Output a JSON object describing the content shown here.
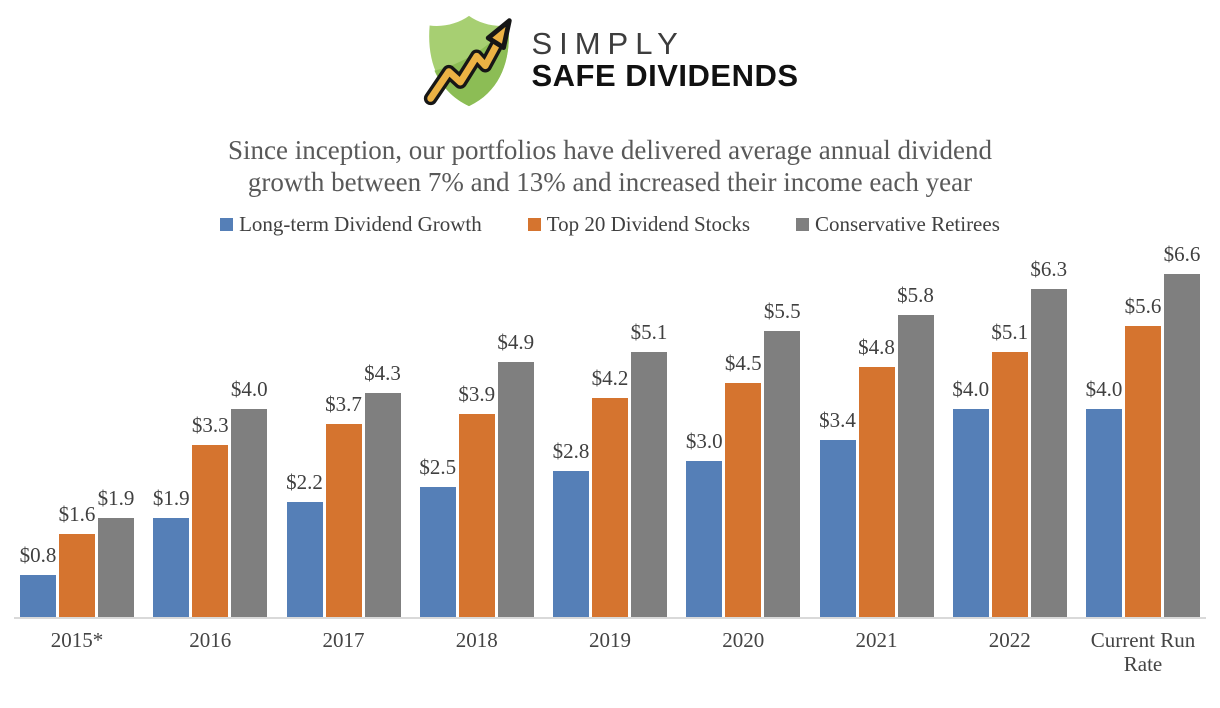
{
  "logo": {
    "brand_top": "SIMPLY",
    "brand_bottom": "SAFE DIVIDENDS",
    "icon": "shield-growth-arrow-icon",
    "colors": {
      "shield_light": "#a7cf72",
      "shield_dark": "#8cbd55",
      "arrow_fill": "#ecb244",
      "arrow_outline": "#161616"
    }
  },
  "title": {
    "line1": "Since inception, our portfolios have delivered average annual dividend",
    "line2": "growth between 7% and 13% and increased their income each year"
  },
  "chart_data": {
    "type": "bar",
    "title": "Since inception, our portfolios have delivered average annual dividend growth between 7% and 13% and increased their income each year",
    "categories": [
      "2015*",
      "2016",
      "2017",
      "2018",
      "2019",
      "2020",
      "2021",
      "2022",
      "Current Run Rate"
    ],
    "series": [
      {
        "name": "Long-term Dividend Growth",
        "color": "#557fb7",
        "values": [
          0.8,
          1.9,
          2.2,
          2.5,
          2.8,
          3.0,
          3.4,
          4.0,
          4.0
        ],
        "labels": [
          "$0.8",
          "$1.9",
          "$2.2",
          "$2.5",
          "$2.8",
          "$3.0",
          "$3.4",
          "$4.0",
          "$4.0"
        ]
      },
      {
        "name": "Top 20 Dividend Stocks",
        "color": "#d5742f",
        "values": [
          1.6,
          3.3,
          3.7,
          3.9,
          4.2,
          4.5,
          4.8,
          5.1,
          5.6
        ],
        "labels": [
          "$1.6",
          "$3.3",
          "$3.7",
          "$3.9",
          "$4.2",
          "$4.5",
          "$4.8",
          "$5.1",
          "$5.6"
        ]
      },
      {
        "name": "Conservative Retirees",
        "color": "#7f7f7f",
        "values": [
          1.9,
          4.0,
          4.3,
          4.9,
          5.1,
          5.5,
          5.8,
          6.3,
          6.6
        ],
        "labels": [
          "$1.9",
          "$4.0",
          "$4.3",
          "$4.9",
          "$5.1",
          "$5.5",
          "$5.8",
          "$6.3",
          "$6.6"
        ]
      }
    ],
    "xlabel": "",
    "ylabel": "",
    "ylim": [
      0,
      6.6
    ],
    "grid": false,
    "y_axis_visible": false,
    "legend_position": "top",
    "data_labels": "outside-end",
    "axis_line_color": "#d9d9d9"
  }
}
